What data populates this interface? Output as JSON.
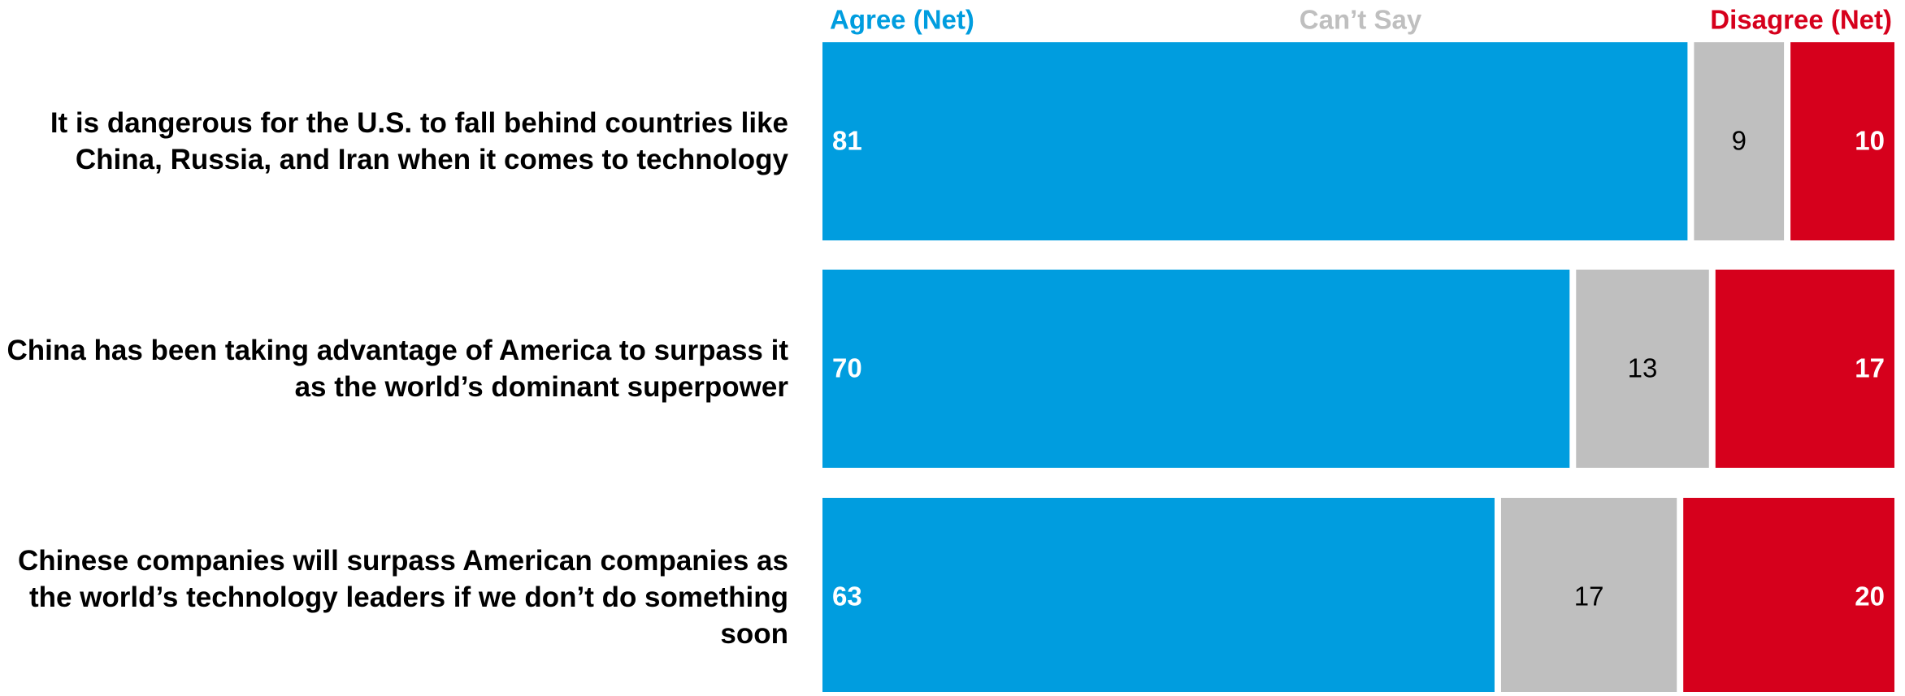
{
  "chart_data": {
    "type": "stacked-bar-horizontal",
    "categories": [
      "It is dangerous for the U.S. to fall behind countries like China, Russia, and Iran when it comes to technology",
      "China has been taking advantage of America to surpass it as the world’s dominant superpower",
      "Chinese companies will surpass American companies as the world’s technology leaders if we don’t do something soon"
    ],
    "series": [
      {
        "name": "Agree (Net)",
        "color": "#009ddf",
        "values": [
          81,
          70,
          63
        ]
      },
      {
        "name": "Can’t Say",
        "color": "#bfbfbf",
        "values": [
          9,
          13,
          17
        ]
      },
      {
        "name": "Disagree (Net)",
        "color": "#d6001c",
        "values": [
          10,
          17,
          20
        ]
      }
    ],
    "xlim": [
      0,
      100
    ],
    "legend": "top"
  }
}
